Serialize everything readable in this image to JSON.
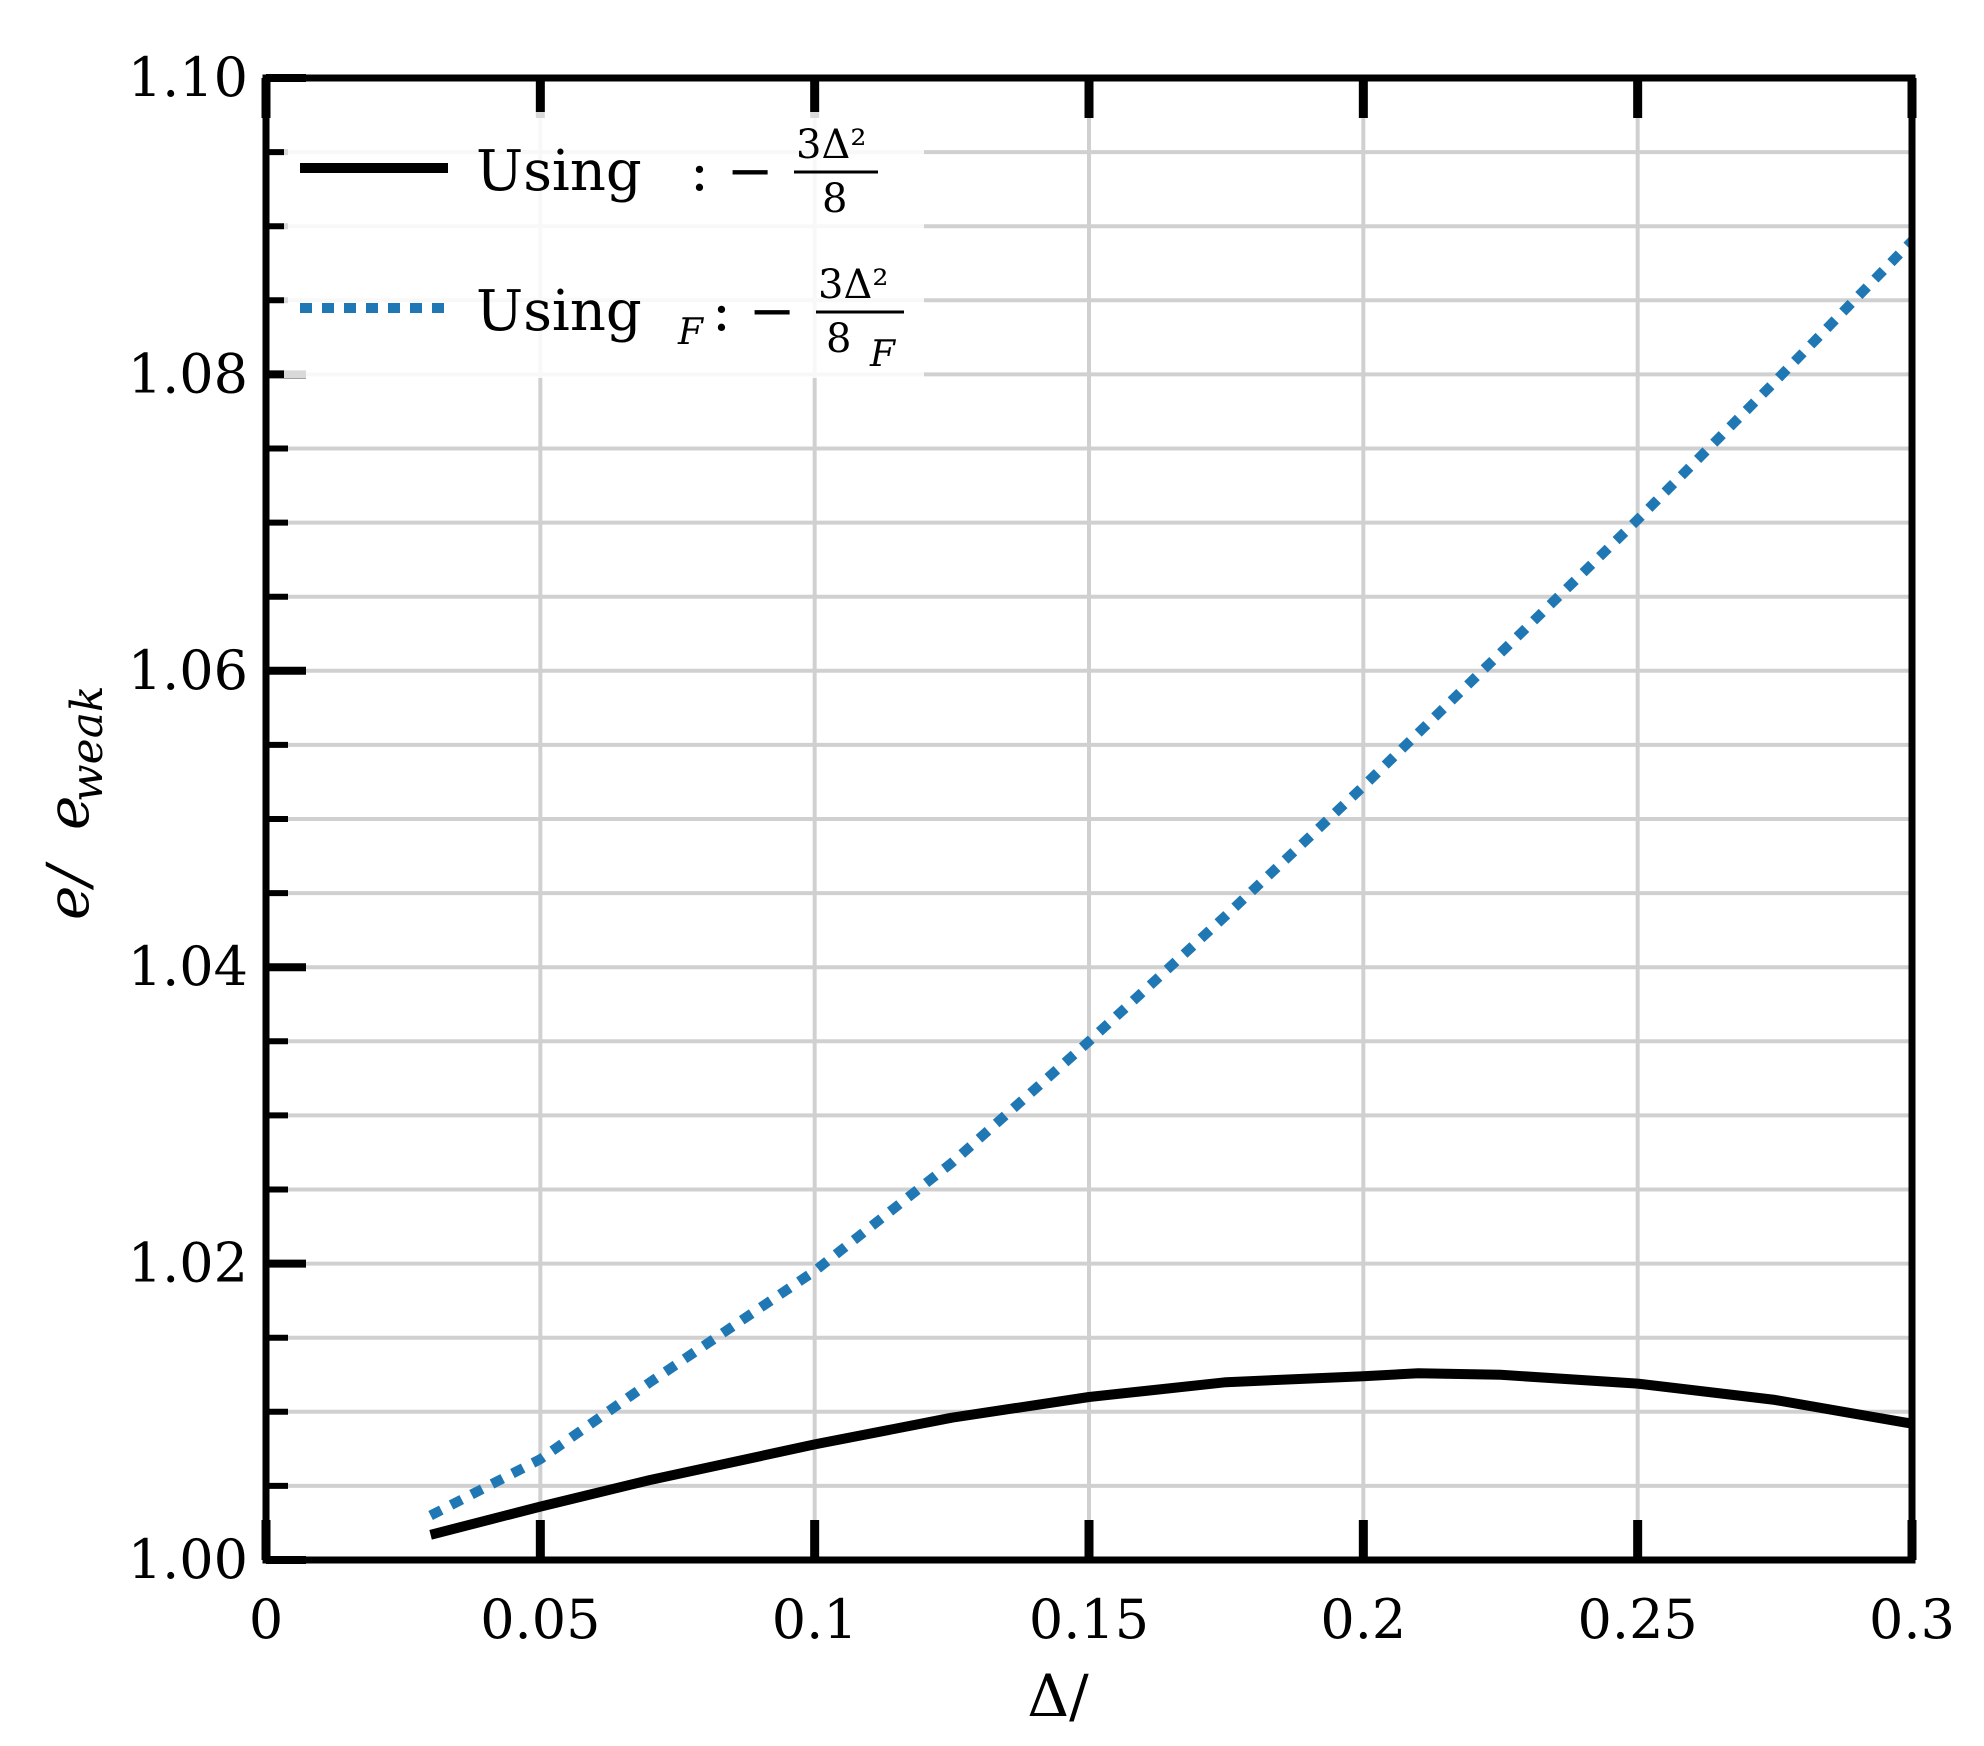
{
  "chart_data": {
    "type": "line",
    "xlabel": "Δ/",
    "ylabel_main": "e/",
    "ylabel_sub": "e",
    "ylabel_subscript": "weak",
    "xlim": [
      0,
      0.3
    ],
    "ylim": [
      1.0,
      1.1
    ],
    "x_ticks": [
      0,
      0.05,
      0.1,
      0.15,
      0.2,
      0.25,
      0.3
    ],
    "x_tick_labels": [
      "0",
      "0.05",
      "0.1",
      "0.15",
      "0.2",
      "0.25",
      "0.3"
    ],
    "y_ticks": [
      1.0,
      1.02,
      1.04,
      1.06,
      1.08,
      1.1
    ],
    "y_tick_labels": [
      "1.00",
      "1.02",
      "1.04",
      "1.06",
      "1.08",
      "1.10"
    ],
    "y_minor_step": 0.005,
    "grid": true,
    "legend_position": "top-left",
    "series": [
      {
        "name": "Using",
        "legend_suffix": ": −",
        "legend_numerator": "3Δ²",
        "legend_denominator": "8",
        "legend_subscript": "",
        "color": "#000000",
        "style": "solid",
        "x": [
          0.03,
          0.05,
          0.07,
          0.1,
          0.125,
          0.15,
          0.175,
          0.2,
          0.21,
          0.225,
          0.25,
          0.275,
          0.3
        ],
        "y": [
          1.0017,
          1.0036,
          1.0054,
          1.0078,
          1.0096,
          1.011,
          1.012,
          1.0124,
          1.0126,
          1.0125,
          1.0119,
          1.0108,
          1.0092
        ]
      },
      {
        "name": "Using",
        "legend_suffix": ": −",
        "legend_numerator": "3Δ²",
        "legend_denominator": "8",
        "legend_subscript": "F",
        "color": "#1f77b4",
        "style": "dotted",
        "x": [
          0.03,
          0.05,
          0.07,
          0.1,
          0.125,
          0.15,
          0.175,
          0.2,
          0.225,
          0.25,
          0.275,
          0.3
        ],
        "y": [
          1.003,
          1.0068,
          1.012,
          1.0195,
          1.0268,
          1.035,
          1.0435,
          1.0522,
          1.0612,
          1.0702,
          1.0795,
          1.089
        ]
      }
    ]
  }
}
